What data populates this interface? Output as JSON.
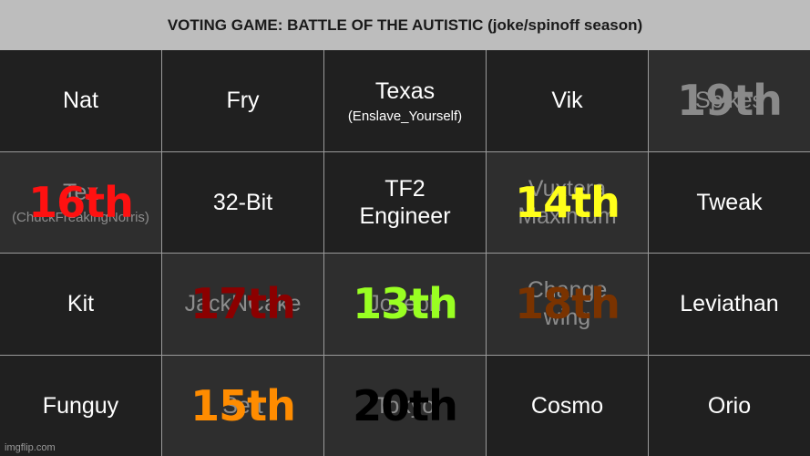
{
  "title": "VOTING GAME: BATTLE OF THE AUTISTIC (joke/spinoff season)",
  "watermark": "imgflip.com",
  "cells": [
    {
      "name": "Nat",
      "sub": "",
      "place": "",
      "eliminated": false,
      "place_color": ""
    },
    {
      "name": "Fry",
      "sub": "",
      "place": "",
      "eliminated": false,
      "place_color": ""
    },
    {
      "name": "Texas",
      "sub": "(Enslave_Yourself)",
      "place": "",
      "eliminated": false,
      "place_color": ""
    },
    {
      "name": "Vik",
      "sub": "",
      "place": "",
      "eliminated": false,
      "place_color": ""
    },
    {
      "name": "Spikes",
      "sub": "",
      "place": "19th",
      "eliminated": true,
      "place_color": "#8a8a8a"
    },
    {
      "name": "Tex",
      "sub": "(ChuckFreakingNorris)",
      "place": "16th",
      "eliminated": true,
      "place_color": "#ff1111"
    },
    {
      "name": "32-Bit",
      "sub": "",
      "place": "",
      "eliminated": false,
      "place_color": ""
    },
    {
      "name": "TF2\nEngineer",
      "sub": "",
      "place": "",
      "eliminated": false,
      "place_color": ""
    },
    {
      "name": "Vuxtera\nMaximum",
      "sub": "",
      "place": "14th",
      "eliminated": true,
      "place_color": "#ffff1a"
    },
    {
      "name": "Tweak",
      "sub": "",
      "place": "",
      "eliminated": false,
      "place_color": ""
    },
    {
      "name": "Kit",
      "sub": "",
      "place": "",
      "eliminated": false,
      "place_color": ""
    },
    {
      "name": "JackNCake",
      "sub": "",
      "place": "17th",
      "eliminated": true,
      "place_color": "#8b0000"
    },
    {
      "name": "Joseph",
      "sub": "",
      "place": "13th",
      "eliminated": true,
      "place_color": "#99ff22"
    },
    {
      "name": "Change\nwing",
      "sub": "",
      "place": "18th",
      "eliminated": true,
      "place_color": "#7a3300"
    },
    {
      "name": "Leviathan",
      "sub": "",
      "place": "",
      "eliminated": false,
      "place_color": ""
    },
    {
      "name": "Funguy",
      "sub": "",
      "place": "",
      "eliminated": false,
      "place_color": ""
    },
    {
      "name": "Sett",
      "sub": "",
      "place": "15th",
      "eliminated": true,
      "place_color": "#ff8c00"
    },
    {
      "name": "Tokyo",
      "sub": "",
      "place": "20th",
      "eliminated": true,
      "place_color": "#000000"
    },
    {
      "name": "Cosmo",
      "sub": "",
      "place": "",
      "eliminated": false,
      "place_color": ""
    },
    {
      "name": "Orio",
      "sub": "",
      "place": "",
      "eliminated": false,
      "place_color": ""
    }
  ]
}
